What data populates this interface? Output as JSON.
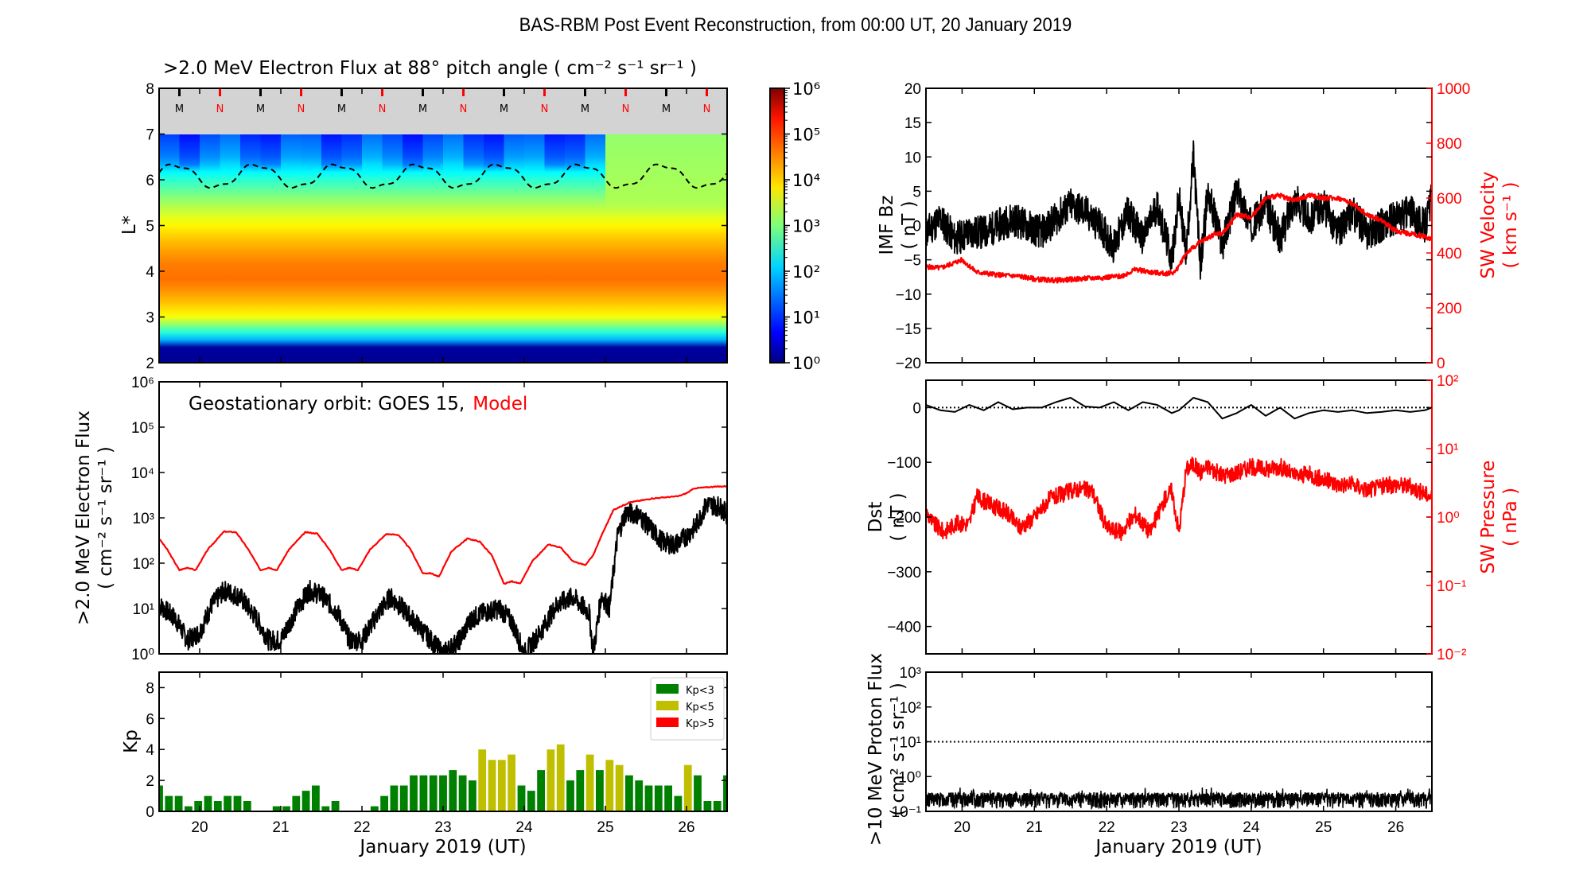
{
  "title": "BAS-RBM Post Event Reconstruction, from 00:00 UT, 20 January 2019",
  "chart_data": [
    {
      "id": "spectrogram",
      "type": "heatmap",
      "title": ">2.0 MeV Electron Flux at 88° pitch angle ( cm⁻² s⁻¹ sr⁻¹ )",
      "ylabel": "L*",
      "ylim": [
        2,
        8
      ],
      "yticks": [
        "2",
        "3",
        "4",
        "5",
        "6",
        "7",
        "8"
      ],
      "xlim": [
        19.5,
        26.5
      ],
      "colorbar": {
        "scale": "log",
        "range": [
          1,
          1000000
        ],
        "ticks": [
          "10⁰",
          "10¹",
          "10²",
          "10³",
          "10⁴",
          "10⁵",
          "10⁶"
        ],
        "colormap": "jet"
      },
      "no_data_band": [
        7,
        8
      ],
      "mlt_markers": {
        "labels": [
          "M",
          "N",
          "M",
          "N",
          "M",
          "N",
          "M",
          "N",
          "M",
          "N",
          "M",
          "N",
          "M",
          "N"
        ],
        "colors": {
          "M": "#000000",
          "N": "#ff0000"
        }
      },
      "profile_by_L": [
        {
          "L": 2.0,
          "log_flux": 0.1
        },
        {
          "L": 2.4,
          "log_flux": 0.2
        },
        {
          "L": 2.5,
          "log_flux": 1.8
        },
        {
          "L": 2.7,
          "log_flux": 2.6
        },
        {
          "L": 3.0,
          "log_flux": 3.7
        },
        {
          "L": 3.3,
          "log_flux": 4.1
        },
        {
          "L": 3.8,
          "log_flux": 4.6
        },
        {
          "L": 4.2,
          "log_flux": 4.5
        },
        {
          "L": 4.7,
          "log_flux": 4.1
        },
        {
          "L": 5.0,
          "log_flux": 3.8
        },
        {
          "L": 5.5,
          "log_flux": 3.2
        },
        {
          "L": 6.0,
          "log_flux": 2.5
        },
        {
          "L": 6.5,
          "log_flux": 1.7
        },
        {
          "L": 7.0,
          "log_flux": 1.3
        }
      ],
      "enhancement_after_day": 24.9,
      "magnetopause_dashed": {
        "min_L": 5.8,
        "max_L": 6.35,
        "period_days": 1.0
      }
    },
    {
      "id": "geo-flux",
      "type": "line",
      "ylabel": ">2.0 MeV Electron Flux\n( cm⁻² s⁻¹ sr⁻¹ )",
      "yscale": "log",
      "ylim": [
        1,
        1000000
      ],
      "yticks": [
        "10⁰",
        "10¹",
        "10²",
        "10³",
        "10⁴",
        "10⁵",
        "10⁶"
      ],
      "xlim": [
        19.5,
        26.5
      ],
      "annotation": {
        "prefix": "Geostationary orbit:   GOES 15,",
        "model": "Model"
      },
      "series": [
        {
          "name": "GOES 15",
          "color": "#000000",
          "x": [
            19.5,
            19.7,
            19.85,
            20.0,
            20.15,
            20.3,
            20.5,
            20.7,
            20.85,
            21.0,
            21.2,
            21.35,
            21.5,
            21.7,
            21.85,
            22.0,
            22.2,
            22.35,
            22.5,
            22.7,
            22.85,
            23.0,
            23.2,
            23.35,
            23.5,
            23.7,
            23.85,
            24.0,
            24.2,
            24.4,
            24.6,
            24.8,
            24.85,
            24.95,
            25.05,
            25.15,
            25.25,
            25.4,
            25.55,
            25.7,
            25.85,
            26.0,
            26.1,
            26.25,
            26.4,
            26.5
          ],
          "y": [
            12,
            6,
            2,
            3,
            12,
            25,
            18,
            6,
            2,
            2,
            10,
            25,
            20,
            8,
            2,
            2,
            8,
            18,
            10,
            4,
            2,
            1,
            2,
            6,
            8,
            10,
            5,
            1,
            3,
            12,
            18,
            8,
            1,
            20,
            10,
            400,
            1300,
            1200,
            600,
            300,
            250,
            400,
            600,
            2000,
            1800,
            1200
          ]
        },
        {
          "name": "Model",
          "color": "#ff0000",
          "x": [
            19.5,
            19.6,
            19.75,
            19.85,
            19.95,
            20.1,
            20.3,
            20.45,
            20.6,
            20.75,
            20.85,
            20.95,
            21.1,
            21.3,
            21.45,
            21.6,
            21.75,
            21.85,
            21.95,
            22.1,
            22.3,
            22.45,
            22.6,
            22.75,
            22.85,
            22.95,
            23.1,
            23.3,
            23.45,
            23.6,
            23.75,
            23.85,
            23.95,
            24.1,
            24.3,
            24.45,
            24.6,
            24.75,
            24.85,
            24.95,
            25.1,
            25.3,
            25.6,
            25.9,
            26.0,
            26.1,
            26.3,
            26.5
          ],
          "y": [
            350,
            200,
            70,
            80,
            70,
            200,
            500,
            480,
            200,
            70,
            80,
            70,
            200,
            480,
            450,
            200,
            70,
            80,
            70,
            200,
            440,
            420,
            200,
            60,
            60,
            50,
            180,
            350,
            300,
            150,
            35,
            40,
            35,
            110,
            260,
            220,
            110,
            90,
            150,
            400,
            1500,
            2200,
            2700,
            3000,
            3500,
            4500,
            4800,
            5000
          ]
        }
      ]
    },
    {
      "id": "kp",
      "type": "bar",
      "ylabel": "Kp",
      "ylim": [
        0,
        9
      ],
      "yticks": [
        "0",
        "2",
        "4",
        "6",
        "8"
      ],
      "xlim": [
        19.5,
        26.5
      ],
      "xticks": [
        "20",
        "21",
        "22",
        "23",
        "24",
        "25",
        "26"
      ],
      "xlabel": "January 2019 (UT)",
      "legend": [
        {
          "label": "Kp<3",
          "color": "#008000"
        },
        {
          "label": "Kp<5",
          "color": "#bfbf00"
        },
        {
          "label": "Kp>5",
          "color": "#ff0000"
        }
      ],
      "legend_position": "top-right",
      "values": [
        1.67,
        1,
        1,
        0.33,
        0.67,
        1,
        0.67,
        1,
        1,
        0.67,
        0,
        0,
        0.33,
        0.33,
        1,
        1.33,
        1.67,
        0.33,
        0.67,
        0,
        0,
        0,
        0.33,
        1,
        1.67,
        1.67,
        2.33,
        2.33,
        2.33,
        2.33,
        2.67,
        2.33,
        2,
        4,
        3.33,
        3.33,
        3.67,
        1.67,
        1.33,
        2.67,
        4,
        4.33,
        2,
        2.67,
        3.67,
        2.67,
        3.33,
        3,
        2.33,
        2,
        1.67,
        1.67,
        1.67,
        1,
        3,
        2.33,
        0.67,
        0.67,
        2.33
      ]
    },
    {
      "id": "imf-sw",
      "type": "line",
      "ylabel": "IMF Bz\n( nT )",
      "ylim": [
        -20,
        20
      ],
      "yticks": [
        "−20",
        "−15",
        "−10",
        "−5",
        "0",
        "5",
        "10",
        "15",
        "20"
      ],
      "y2label": "SW Velocity\n( km s⁻¹ )",
      "y2lim": [
        0,
        1000
      ],
      "y2ticks": [
        "0",
        "200",
        "400",
        "600",
        "800",
        "1000"
      ],
      "xlim": [
        19.5,
        26.5
      ],
      "series": [
        {
          "name": "IMF Bz",
          "axis": "left",
          "color": "#000000",
          "x": [
            19.5,
            19.7,
            19.9,
            20.1,
            20.3,
            20.5,
            20.7,
            20.9,
            21.1,
            21.3,
            21.5,
            21.7,
            21.9,
            22.1,
            22.3,
            22.5,
            22.7,
            22.9,
            23.0,
            23.1,
            23.2,
            23.3,
            23.4,
            23.6,
            23.8,
            24.0,
            24.2,
            24.4,
            24.6,
            24.8,
            25.0,
            25.2,
            25.4,
            25.6,
            25.8,
            26.0,
            26.2,
            26.4,
            26.5
          ],
          "y": [
            -1,
            1,
            -2,
            -1,
            -1,
            0,
            1,
            0,
            -1,
            1,
            3,
            2,
            0,
            -3,
            2,
            -2,
            3,
            -5,
            4,
            -4,
            10,
            -6,
            5,
            -3,
            5,
            0,
            3,
            -2,
            4,
            1,
            3,
            -1,
            2,
            -1,
            0,
            1,
            2,
            0,
            4
          ]
        },
        {
          "name": "SW Velocity",
          "axis": "right",
          "color": "#ff0000",
          "x": [
            19.5,
            19.7,
            19.9,
            20.0,
            20.2,
            20.5,
            20.8,
            21.0,
            21.3,
            21.6,
            21.9,
            22.2,
            22.4,
            22.6,
            22.8,
            22.95,
            23.1,
            23.3,
            23.5,
            23.6,
            23.8,
            24.0,
            24.2,
            24.4,
            24.6,
            24.8,
            25.0,
            25.2,
            25.4,
            25.6,
            25.8,
            26.0,
            26.2,
            26.4,
            26.5
          ],
          "y": [
            350,
            345,
            365,
            375,
            330,
            320,
            315,
            305,
            300,
            305,
            310,
            315,
            340,
            330,
            325,
            330,
            400,
            440,
            470,
            470,
            540,
            530,
            600,
            610,
            590,
            610,
            600,
            600,
            580,
            540,
            520,
            480,
            470,
            460,
            450
          ]
        }
      ]
    },
    {
      "id": "dst-pressure",
      "type": "line",
      "ylabel": "Dst\n( nT )",
      "ylim": [
        -450,
        50
      ],
      "yticks": [
        "−400",
        "−300",
        "−200",
        "−100",
        "0"
      ],
      "y2label": "SW Pressure\n( nPa )",
      "y2scale": "log",
      "y2lim": [
        0.01,
        100
      ],
      "y2ticks": [
        "10⁻²",
        "10⁻¹",
        "10⁰",
        "10¹",
        "10²"
      ],
      "xlim": [
        19.5,
        26.5
      ],
      "reference_line_y": 0,
      "series": [
        {
          "name": "Dst",
          "axis": "left",
          "color": "#000000",
          "x": [
            19.5,
            19.7,
            19.9,
            20.1,
            20.3,
            20.5,
            20.7,
            20.9,
            21.1,
            21.3,
            21.5,
            21.7,
            21.9,
            22.1,
            22.3,
            22.5,
            22.7,
            22.9,
            23.0,
            23.2,
            23.4,
            23.6,
            23.8,
            24.0,
            24.2,
            24.4,
            24.6,
            24.8,
            25.0,
            25.2,
            25.4,
            25.6,
            25.8,
            26.0,
            26.2,
            26.4,
            26.5
          ],
          "y": [
            5,
            -5,
            -8,
            5,
            -5,
            10,
            -3,
            0,
            0,
            10,
            18,
            2,
            0,
            10,
            -5,
            10,
            5,
            -10,
            -5,
            18,
            10,
            -20,
            -10,
            5,
            -15,
            0,
            -20,
            -10,
            -5,
            -8,
            -5,
            -10,
            -8,
            -5,
            -8,
            -5,
            0
          ]
        },
        {
          "name": "SW Pressure",
          "axis": "right",
          "color": "#ff0000",
          "x": [
            19.5,
            19.6,
            19.75,
            19.9,
            20.1,
            20.2,
            20.4,
            20.6,
            20.8,
            21.0,
            21.2,
            21.4,
            21.6,
            21.8,
            22.0,
            22.2,
            22.4,
            22.6,
            22.8,
            22.9,
            23.0,
            23.1,
            23.2,
            23.3,
            23.4,
            23.6,
            23.8,
            24.0,
            24.2,
            24.4,
            24.6,
            24.8,
            25.0,
            25.2,
            25.4,
            25.6,
            25.8,
            26.0,
            26.2,
            26.4,
            26.5
          ],
          "y": [
            1.2,
            0.8,
            0.6,
            0.8,
            0.8,
            2,
            1.5,
            1.2,
            0.7,
            1,
            1.8,
            2.2,
            2.6,
            2.4,
            0.7,
            0.6,
            1.1,
            0.6,
            1.8,
            2.5,
            0.6,
            5,
            6,
            4.5,
            5.5,
            4,
            4.5,
            5.5,
            5,
            5.5,
            4,
            4.2,
            3.5,
            3,
            3,
            2.5,
            2.8,
            3,
            2.8,
            2.2,
            2
          ]
        }
      ]
    },
    {
      "id": "proton-flux",
      "type": "line",
      "ylabel": ">10 MeV Proton Flux\n( cm² s⁻¹ sr⁻¹ )",
      "yscale": "log",
      "ylim": [
        0.1,
        1000
      ],
      "yticks": [
        "10⁻¹",
        "10⁰",
        "10¹",
        "10²",
        "10³"
      ],
      "xlim": [
        19.5,
        26.5
      ],
      "xticks": [
        "20",
        "21",
        "22",
        "23",
        "24",
        "25",
        "26"
      ],
      "xlabel": "January 2019 (UT)",
      "threshold_line_y": 10,
      "series": [
        {
          "name": ">10 MeV protons",
          "color": "#000000",
          "typical_range": [
            0.12,
            0.35
          ]
        }
      ]
    }
  ]
}
